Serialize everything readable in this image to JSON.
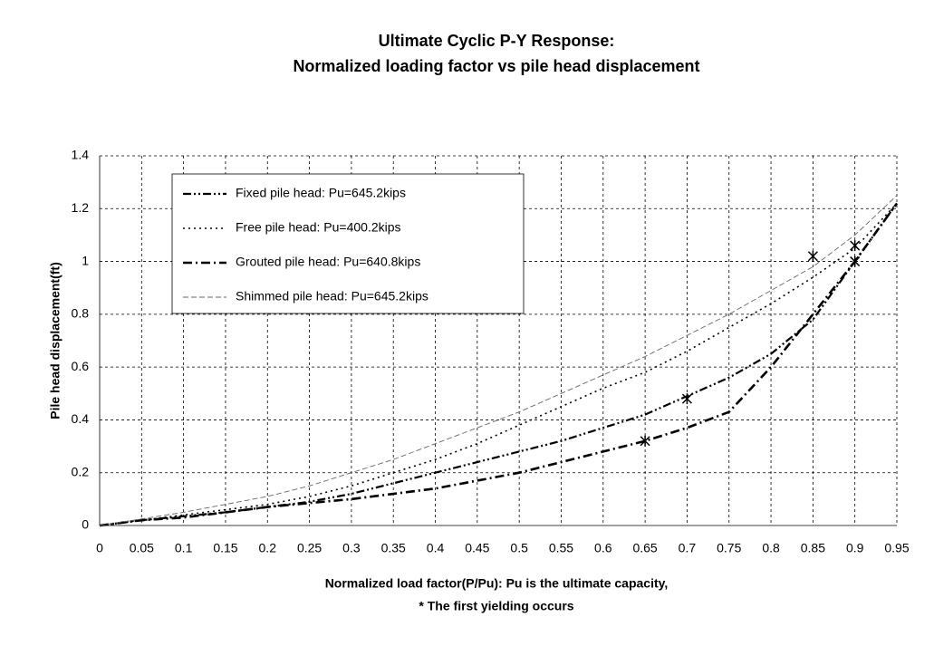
{
  "chart_data": {
    "type": "line",
    "title": "Ultimate Cyclic P-Y Response:",
    "subtitle": "Normalized loading factor vs pile head displacement",
    "xlabel": "Normalized load factor(P/Pu): Pu is the ultimate capacity,",
    "note": "* The first yielding occurs",
    "ylabel": "Pile head displacement(ft)",
    "x": [
      0,
      0.05,
      0.1,
      0.15,
      0.2,
      0.25,
      0.3,
      0.35,
      0.4,
      0.45,
      0.5,
      0.55,
      0.6,
      0.65,
      0.7,
      0.75,
      0.8,
      0.85,
      0.9,
      0.95
    ],
    "series": [
      {
        "name": "Fixed pile head:  Pu=645.2kips",
        "color": "#000000",
        "dash": "9 3 2 3 2 3",
        "width": 2.2,
        "values": [
          0,
          0.02,
          0.035,
          0.05,
          0.07,
          0.09,
          0.12,
          0.16,
          0.2,
          0.24,
          0.28,
          0.32,
          0.37,
          0.42,
          0.49,
          0.56,
          0.65,
          0.78,
          1.0,
          1.22
        ]
      },
      {
        "name": "Free pile head:  Pu=400.2kips",
        "color": "#000000",
        "dash": "2 4",
        "width": 1.6,
        "values": [
          0,
          0.02,
          0.04,
          0.06,
          0.08,
          0.11,
          0.15,
          0.2,
          0.25,
          0.31,
          0.38,
          0.45,
          0.52,
          0.58,
          0.66,
          0.75,
          0.84,
          0.94,
          1.05,
          1.22
        ]
      },
      {
        "name": "Grouted pile head: Pu=640.8kips",
        "color": "#000000",
        "dash": "10 4 2 4",
        "width": 2.6,
        "values": [
          0,
          0.02,
          0.03,
          0.05,
          0.07,
          0.085,
          0.1,
          0.12,
          0.14,
          0.17,
          0.2,
          0.24,
          0.28,
          0.32,
          0.37,
          0.43,
          0.6,
          0.8,
          1.0,
          1.22
        ]
      },
      {
        "name": "Shimmed pile head: Pu=645.2kips",
        "color": "#666666",
        "dash": "6 3",
        "width": 0.9,
        "values": [
          0,
          0.025,
          0.05,
          0.08,
          0.11,
          0.15,
          0.2,
          0.25,
          0.31,
          0.37,
          0.43,
          0.5,
          0.57,
          0.64,
          0.72,
          0.8,
          0.89,
          0.98,
          1.1,
          1.25
        ]
      }
    ],
    "yield_points": {
      "x": [
        0.65,
        0.7,
        0.85,
        0.9,
        0.9
      ],
      "y": [
        0.32,
        0.48,
        1.02,
        1.06,
        1.0
      ]
    },
    "xlim": [
      0,
      0.95
    ],
    "ylim": [
      0,
      1.4
    ],
    "xticks": [
      0,
      0.05,
      0.1,
      0.15,
      0.2,
      0.25,
      0.3,
      0.35,
      0.4,
      0.45,
      0.5,
      0.55,
      0.6,
      0.65,
      0.7,
      0.75,
      0.8,
      0.85,
      0.9,
      0.95
    ],
    "yticks": [
      0,
      0.2,
      0.4,
      0.6,
      0.8,
      1,
      1.2,
      1.4
    ],
    "grid": true
  }
}
